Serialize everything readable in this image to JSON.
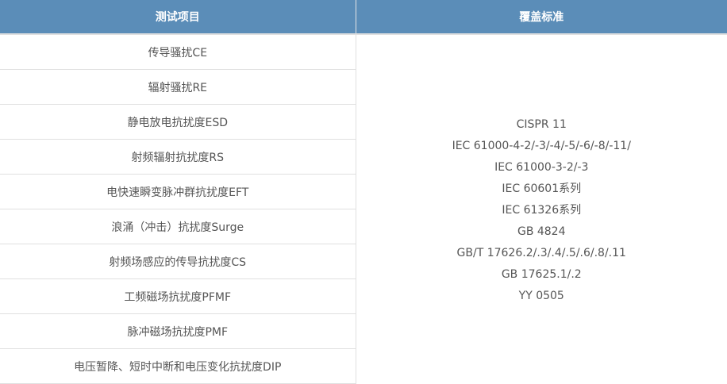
{
  "header": {
    "col1": "测试项目",
    "col2": "覆盖标准"
  },
  "items": [
    "传导骚扰CE",
    "辐射骚扰RE",
    "静电放电抗扰度ESD",
    "射频辐射抗扰度RS",
    "电快速瞬变脉冲群抗扰度EFT",
    "浪涌（冲击）抗扰度Surge",
    "射频场感应的传导抗扰度CS",
    "工频磁场抗扰度PFMF",
    "脉冲磁场抗扰度PMF",
    "电压暂降、短时中断和电压变化抗扰度DIP"
  ],
  "standards": [
    "CISPR 11",
    "IEC 61000-4-2/-3/-4/-5/-6/-8/-11/",
    "IEC 61000-3-2/-3",
    "IEC 60601系列",
    "IEC 61326系列",
    "GB 4824",
    "GB/T 17626.2/.3/.4/.5/.6/.8/.11",
    "GB 17625.1/.2",
    "YY 0505"
  ],
  "colors": {
    "header_bg": "#5b8db8",
    "text": "#555555"
  }
}
